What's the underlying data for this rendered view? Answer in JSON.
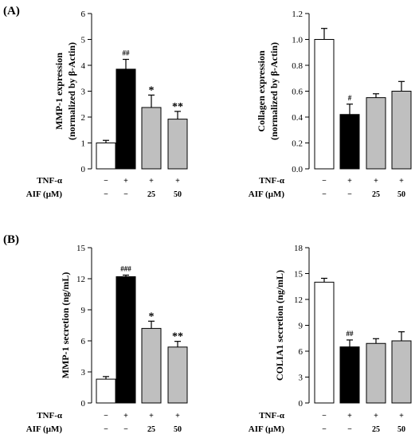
{
  "figure": {
    "panel_labels": [
      "(A)",
      "(B)"
    ],
    "row_labels": [
      "TNF-α",
      "AIF (μM)"
    ],
    "row_values": [
      [
        "−",
        "+",
        "+",
        "+"
      ],
      [
        "−",
        "−",
        "25",
        "50"
      ]
    ]
  },
  "chart_data": [
    {
      "type": "bar",
      "title": "",
      "xlabel": "",
      "ylabel": [
        "MMP-1 expression",
        "(normalized by β-Actin)"
      ],
      "ylim": [
        0,
        6
      ],
      "yticks": [
        "0",
        "1",
        "2",
        "3",
        "4",
        "5",
        "6"
      ],
      "categories": [
        "control",
        "TNF-α",
        "TNF-α + AIF 25",
        "TNF-α + AIF 50"
      ],
      "values": [
        1.0,
        3.85,
        2.37,
        1.92
      ],
      "errors": [
        0.1,
        0.38,
        0.48,
        0.3
      ],
      "annotations": [
        "",
        "##",
        "*",
        "**"
      ],
      "colors": [
        "#ffffff",
        "#000000",
        "#bfbfbf",
        "#bfbfbf"
      ],
      "grid": false
    },
    {
      "type": "bar",
      "title": "",
      "xlabel": "",
      "ylabel": [
        "Collagen expression",
        "(normalized by β-Actin)"
      ],
      "ylim": [
        0,
        1.2
      ],
      "yticks": [
        "0.0",
        "0.2",
        "0.4",
        "0.6",
        "0.8",
        "1.0",
        "1.2"
      ],
      "categories": [
        "control",
        "TNF-α",
        "TNF-α + AIF 25",
        "TNF-α + AIF 50"
      ],
      "values": [
        1.0,
        0.42,
        0.55,
        0.6
      ],
      "errors": [
        0.085,
        0.08,
        0.03,
        0.075
      ],
      "annotations": [
        "",
        "#",
        "",
        ""
      ],
      "colors": [
        "#ffffff",
        "#000000",
        "#bfbfbf",
        "#bfbfbf"
      ],
      "grid": false
    },
    {
      "type": "bar",
      "title": "",
      "xlabel": "",
      "ylabel": [
        "MMP-1 secretion (ng/mL)"
      ],
      "ylim": [
        0,
        15
      ],
      "yticks": [
        "0",
        "3",
        "6",
        "9",
        "12",
        "15"
      ],
      "categories": [
        "control",
        "TNF-α",
        "TNF-α + AIF 25",
        "TNF-α + AIF 50"
      ],
      "values": [
        2.3,
        12.2,
        7.2,
        5.4
      ],
      "errors": [
        0.25,
        0.15,
        0.7,
        0.55
      ],
      "annotations": [
        "",
        "###",
        "*",
        "**"
      ],
      "colors": [
        "#ffffff",
        "#000000",
        "#bfbfbf",
        "#bfbfbf"
      ],
      "grid": false
    },
    {
      "type": "bar",
      "title": "",
      "xlabel": "",
      "ylabel": [
        "COLIA1 secretion (ng/mL)"
      ],
      "ylim": [
        0,
        18
      ],
      "yticks": [
        "0",
        "3",
        "6",
        "9",
        "12",
        "15",
        "18"
      ],
      "categories": [
        "control",
        "TNF-α",
        "TNF-α + AIF 25",
        "TNF-α + AIF 50"
      ],
      "values": [
        14.0,
        6.5,
        6.9,
        7.2
      ],
      "errors": [
        0.45,
        0.8,
        0.55,
        1.05
      ],
      "annotations": [
        "",
        "##",
        "",
        ""
      ],
      "colors": [
        "#ffffff",
        "#000000",
        "#bfbfbf",
        "#bfbfbf"
      ],
      "grid": false
    }
  ]
}
